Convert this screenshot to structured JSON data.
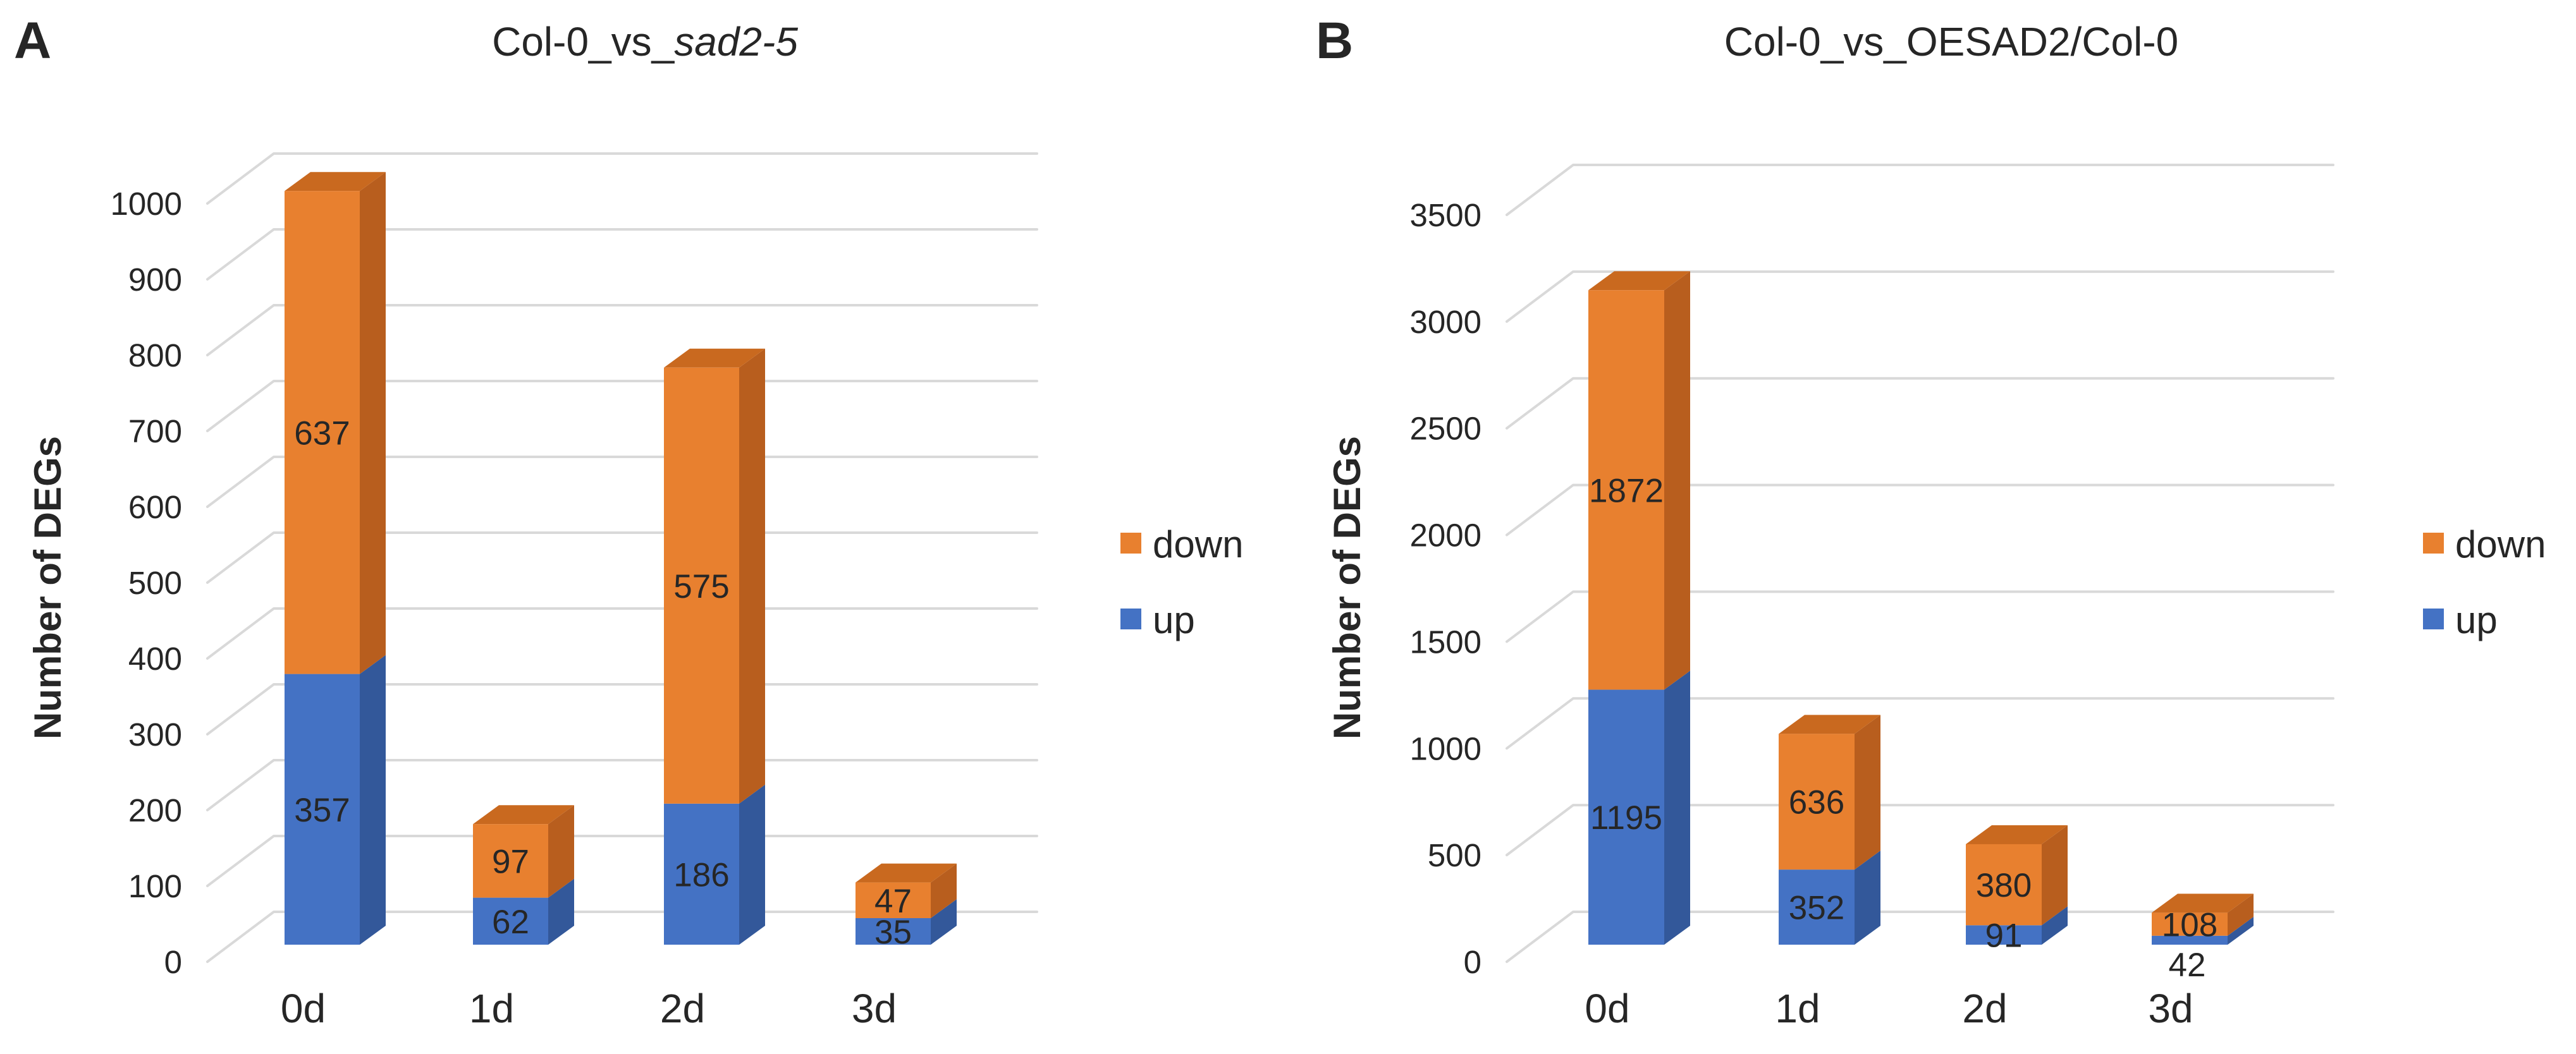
{
  "figure_background": "#FFFFFF",
  "colors": {
    "gridline": "#D9D9D9",
    "text": "#262626",
    "up_front": "#4472C4",
    "up_side": "#33589A",
    "down_front": "#E8802F",
    "down_side": "#B85E1E",
    "down_top": "#C9691F",
    "up_label": "#1F3864",
    "down_label": "#5A2A0C",
    "outside_label": "#2E3A52"
  },
  "chart_data": [
    {
      "type": "bar",
      "stacked": true,
      "projection": "3d-oblique",
      "panel_label": "A",
      "title_prefix": "Col-0_vs_",
      "title_italic": "sad2-5",
      "title": "Col-0_vs_sad2-5",
      "ylabel": "Number of DEGs",
      "xlabel": "",
      "categories": [
        "0d",
        "1d",
        "2d",
        "3d"
      ],
      "series": [
        {
          "name": "up",
          "color_front": "#4472C4",
          "color_side": "#33589A",
          "label_color": "#1F3864",
          "values": [
            357,
            62,
            186,
            35
          ],
          "label_placement": [
            "inside",
            "inside",
            "inside",
            "inside"
          ]
        },
        {
          "name": "down",
          "color_front": "#E8802F",
          "color_side": "#B85E1E",
          "color_top": "#C9691F",
          "label_color": "#5A2A0C",
          "values": [
            637,
            97,
            575,
            47
          ],
          "label_placement": [
            "inside",
            "inside",
            "inside",
            "inside"
          ]
        }
      ],
      "totals": [
        994,
        159,
        761,
        82
      ],
      "yticks": [
        0,
        100,
        200,
        300,
        400,
        500,
        600,
        700,
        800,
        900,
        1000
      ],
      "ylim": [
        0,
        1000
      ],
      "grid": true,
      "legend_position": "right",
      "legend_items": [
        {
          "label": "down",
          "color": "#E8802F"
        },
        {
          "label": "up",
          "color": "#4472C4"
        }
      ]
    },
    {
      "type": "bar",
      "stacked": true,
      "projection": "3d-oblique",
      "panel_label": "B",
      "title_prefix": "Col-0_vs_OESAD2/Col-0",
      "title_italic": "",
      "title": "Col-0_vs_OESAD2/Col-0",
      "ylabel": "Number of DEGs",
      "xlabel": "",
      "categories": [
        "0d",
        "1d",
        "2d",
        "3d"
      ],
      "series": [
        {
          "name": "up",
          "color_front": "#4472C4",
          "color_side": "#33589A",
          "label_color": "#1F3864",
          "values": [
            1195,
            352,
            91,
            42
          ],
          "label_placement": [
            "inside",
            "inside",
            "inside",
            "below"
          ]
        },
        {
          "name": "down",
          "color_front": "#E8802F",
          "color_side": "#B85E1E",
          "color_top": "#C9691F",
          "label_color": "#5A2A0C",
          "values": [
            1872,
            636,
            380,
            108
          ],
          "label_placement": [
            "inside",
            "inside",
            "inside",
            "inside"
          ]
        }
      ],
      "totals": [
        3067,
        988,
        471,
        150
      ],
      "yticks": [
        0,
        500,
        1000,
        1500,
        2000,
        2500,
        3000,
        3500
      ],
      "ylim": [
        0,
        3500
      ],
      "grid": true,
      "legend_position": "right",
      "legend_items": [
        {
          "label": "down",
          "color": "#E8802F"
        },
        {
          "label": "up",
          "color": "#4472C4"
        }
      ]
    }
  ]
}
